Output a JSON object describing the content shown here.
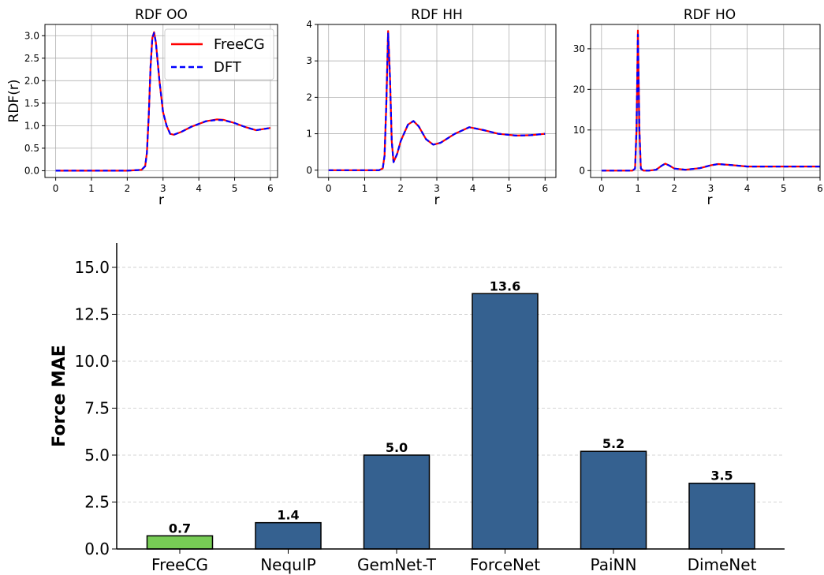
{
  "chart_data": [
    {
      "type": "line",
      "title": "RDF OO",
      "xlabel": "r",
      "ylabel": "RDF(r)",
      "xlim": [
        -0.3,
        6.2
      ],
      "ylim": [
        -0.15,
        3.25
      ],
      "xticks": [
        0,
        1,
        2,
        3,
        4,
        5,
        6
      ],
      "yticks": [
        0.0,
        0.5,
        1.0,
        1.5,
        2.0,
        2.5,
        3.0
      ],
      "ytick_labels": [
        "0.0",
        "0.5",
        "1.0",
        "1.5",
        "2.0",
        "2.5",
        "3.0"
      ],
      "grid": true,
      "legend": "top-right",
      "series": [
        {
          "name": "FreeCG",
          "color": "#ff0000",
          "style": "solid",
          "x": [
            0,
            2.0,
            2.4,
            2.5,
            2.55,
            2.6,
            2.65,
            2.7,
            2.75,
            2.8,
            2.9,
            3.0,
            3.1,
            3.2,
            3.3,
            3.5,
            3.8,
            4.2,
            4.5,
            4.7,
            5.0,
            5.3,
            5.6,
            6.0
          ],
          "y": [
            0,
            0,
            0.02,
            0.1,
            0.4,
            1.2,
            2.3,
            2.95,
            3.08,
            2.85,
            2.0,
            1.3,
            1.0,
            0.82,
            0.8,
            0.86,
            0.98,
            1.1,
            1.14,
            1.13,
            1.06,
            0.97,
            0.9,
            0.95
          ]
        },
        {
          "name": "DFT",
          "color": "#0000ff",
          "style": "dashed",
          "x": [
            0,
            2.0,
            2.4,
            2.5,
            2.55,
            2.6,
            2.65,
            2.7,
            2.75,
            2.8,
            2.9,
            3.0,
            3.1,
            3.2,
            3.3,
            3.5,
            3.8,
            4.2,
            4.5,
            4.7,
            5.0,
            5.3,
            5.6,
            6.0
          ],
          "y": [
            0,
            0,
            0.02,
            0.1,
            0.4,
            1.2,
            2.3,
            2.95,
            3.06,
            2.85,
            2.0,
            1.3,
            1.0,
            0.82,
            0.8,
            0.86,
            0.98,
            1.1,
            1.13,
            1.12,
            1.06,
            0.97,
            0.9,
            0.95
          ]
        }
      ]
    },
    {
      "type": "line",
      "title": "RDF HH",
      "xlabel": "r",
      "ylabel": "",
      "xlim": [
        -0.3,
        6.3
      ],
      "ylim": [
        -0.2,
        4.0
      ],
      "xticks": [
        0,
        1,
        2,
        3,
        4,
        5,
        6
      ],
      "yticks": [
        0,
        1,
        2,
        3,
        4
      ],
      "ytick_labels": [
        "0",
        "1",
        "2",
        "3",
        "4"
      ],
      "grid": true,
      "series": [
        {
          "name": "FreeCG",
          "color": "#ff0000",
          "style": "solid",
          "x": [
            0,
            1.4,
            1.5,
            1.55,
            1.6,
            1.65,
            1.7,
            1.75,
            1.8,
            1.9,
            2.0,
            2.2,
            2.35,
            2.5,
            2.7,
            2.9,
            3.1,
            3.5,
            3.9,
            4.3,
            4.7,
            5.2,
            5.6,
            6.0
          ],
          "y": [
            0,
            0,
            0.05,
            0.4,
            1.8,
            3.82,
            2.6,
            0.8,
            0.22,
            0.45,
            0.8,
            1.25,
            1.35,
            1.2,
            0.85,
            0.7,
            0.75,
            1.0,
            1.18,
            1.1,
            1.0,
            0.95,
            0.96,
            1.0
          ]
        },
        {
          "name": "DFT",
          "color": "#0000ff",
          "style": "dashed",
          "x": [
            0,
            1.4,
            1.5,
            1.55,
            1.6,
            1.65,
            1.7,
            1.75,
            1.8,
            1.9,
            2.0,
            2.2,
            2.35,
            2.5,
            2.7,
            2.9,
            3.1,
            3.5,
            3.9,
            4.3,
            4.7,
            5.2,
            5.6,
            6.0
          ],
          "y": [
            0,
            0,
            0.05,
            0.4,
            1.8,
            3.75,
            2.6,
            0.8,
            0.22,
            0.45,
            0.8,
            1.25,
            1.35,
            1.2,
            0.85,
            0.7,
            0.75,
            1.0,
            1.18,
            1.1,
            1.0,
            0.95,
            0.96,
            1.0
          ]
        }
      ]
    },
    {
      "type": "line",
      "title": "RDF HO",
      "xlabel": "r",
      "ylabel": "",
      "xlim": [
        -0.3,
        6.0
      ],
      "ylim": [
        -1.7,
        36
      ],
      "xticks": [
        0,
        1,
        2,
        3,
        4,
        5,
        6
      ],
      "yticks": [
        0,
        10,
        20,
        30
      ],
      "ytick_labels": [
        "0",
        "10",
        "20",
        "30"
      ],
      "grid": true,
      "series": [
        {
          "name": "FreeCG",
          "color": "#ff0000",
          "style": "solid",
          "x": [
            0,
            0.85,
            0.92,
            0.96,
            1.0,
            1.04,
            1.08,
            1.15,
            1.3,
            1.5,
            1.65,
            1.75,
            1.85,
            2.0,
            2.3,
            2.7,
            3.0,
            3.2,
            3.5,
            4.0,
            5.0,
            6.0
          ],
          "y": [
            0,
            0,
            0.5,
            10,
            34.5,
            10,
            0.5,
            0,
            0,
            0.2,
            1.2,
            1.7,
            1.3,
            0.5,
            0.2,
            0.6,
            1.3,
            1.6,
            1.4,
            1.0,
            1.0,
            1.0
          ]
        },
        {
          "name": "DFT",
          "color": "#0000ff",
          "style": "dashed",
          "x": [
            0,
            0.85,
            0.92,
            0.96,
            1.0,
            1.04,
            1.08,
            1.15,
            1.3,
            1.5,
            1.65,
            1.75,
            1.85,
            2.0,
            2.3,
            2.7,
            3.0,
            3.2,
            3.5,
            4.0,
            5.0,
            6.0
          ],
          "y": [
            0,
            0,
            0.5,
            10,
            33.5,
            10,
            0.5,
            0,
            0,
            0.2,
            1.2,
            1.7,
            1.3,
            0.5,
            0.2,
            0.6,
            1.3,
            1.6,
            1.4,
            1.0,
            1.0,
            1.0
          ]
        }
      ]
    },
    {
      "type": "bar",
      "title": "",
      "xlabel": "",
      "ylabel": "Force MAE",
      "ylim": [
        0,
        16.3
      ],
      "yticks": [
        0,
        2.5,
        5,
        7.5,
        10,
        12.5,
        15
      ],
      "ytick_labels": [
        "0.0",
        "2.5",
        "5.0",
        "7.5",
        "10.0",
        "12.5",
        "15.0"
      ],
      "grid": "horizontal dashed",
      "categories": [
        "FreeCG",
        "NequIP",
        "GemNet-T",
        "ForceNet",
        "PaiNN",
        "DimeNet"
      ],
      "values": [
        0.7,
        1.4,
        5.0,
        13.6,
        5.2,
        3.5
      ],
      "value_labels": [
        "0.7",
        "1.4",
        "5.0",
        "13.6",
        "5.2",
        "3.5"
      ],
      "colors": [
        "#77cc55",
        "#356190",
        "#356190",
        "#356190",
        "#356190",
        "#356190"
      ]
    }
  ]
}
